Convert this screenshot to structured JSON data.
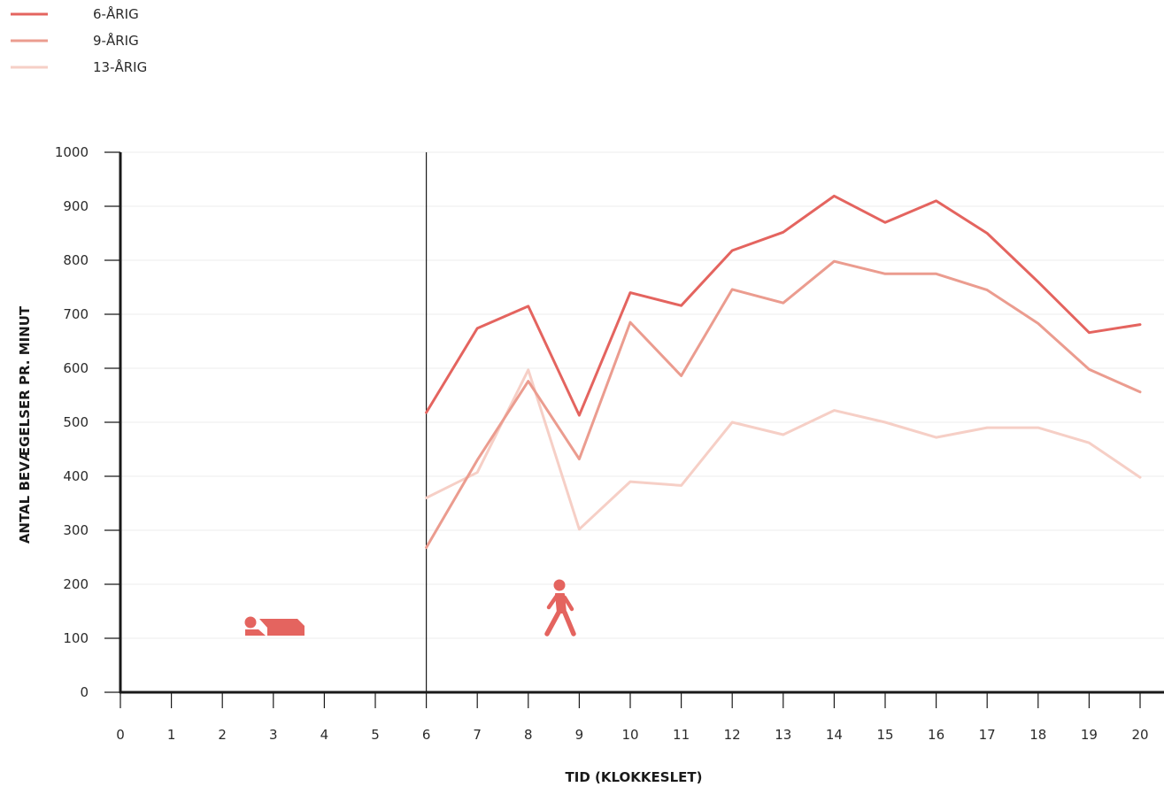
{
  "chart_data": {
    "type": "line",
    "title": "",
    "xlabel": "TID (KLOKKESLET)",
    "ylabel": "ANTAL BEVÆGELSER PR. MINUT",
    "xlim": [
      0,
      20
    ],
    "ylim": [
      0,
      1000
    ],
    "x_ticks": [
      0,
      1,
      2,
      3,
      4,
      5,
      6,
      7,
      8,
      9,
      10,
      11,
      12,
      13,
      14,
      15,
      16,
      17,
      18,
      19,
      20
    ],
    "y_ticks": [
      0,
      100,
      200,
      300,
      400,
      500,
      600,
      700,
      800,
      900,
      1000
    ],
    "x": [
      6,
      7,
      8,
      9,
      10,
      11,
      12,
      13,
      14,
      15,
      16,
      17,
      18,
      19,
      20
    ],
    "series": [
      {
        "name": "6-ÅRIG",
        "color": "#e4645f",
        "values": [
          518,
          674,
          715,
          513,
          740,
          716,
          818,
          852,
          919,
          870,
          910,
          850,
          760,
          666,
          681
        ]
      },
      {
        "name": "9-ÅRIG",
        "color": "#eb9c8f",
        "values": [
          268,
          430,
          576,
          432,
          685,
          586,
          746,
          721,
          798,
          775,
          775,
          745,
          683,
          598,
          556
        ]
      },
      {
        "name": "13-ÅRIG",
        "color": "#f6cfc6",
        "values": [
          360,
          407,
          597,
          302,
          390,
          383,
          500,
          477,
          522,
          500,
          472,
          490,
          490,
          462,
          398
        ]
      }
    ],
    "divider_x": 6,
    "grid": "horizontal",
    "legend_position": "top-left",
    "icons": [
      {
        "name": "sleeping-person-icon",
        "color": "#e4645f"
      },
      {
        "name": "walking-person-icon",
        "color": "#e4645f"
      }
    ]
  }
}
